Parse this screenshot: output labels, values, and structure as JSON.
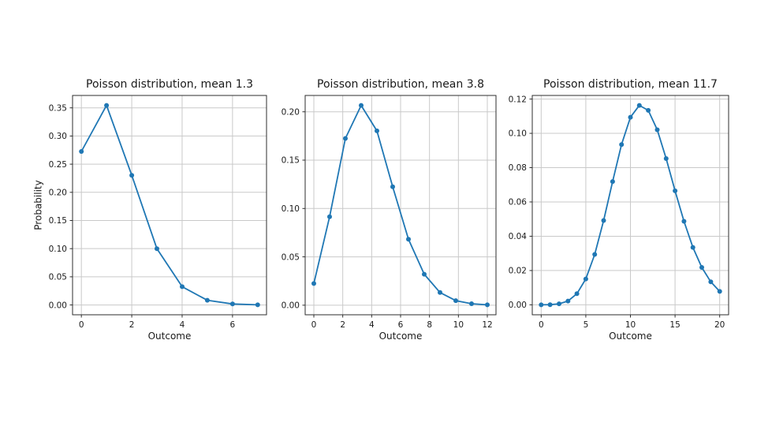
{
  "window": {
    "background": "#ffffff",
    "description": "Figure with three Poisson distribution line plots"
  },
  "style": {
    "accent_line": "#1f77b4",
    "grid": "#c9c9c9",
    "spine": "#2e2e2e",
    "text": "#1a1a1a"
  },
  "chart_data": [
    {
      "type": "line",
      "title": "Poisson distribution, mean 1.3",
      "xlabel": "Outcome",
      "ylabel": "Probability",
      "mean": 1.3,
      "x": [
        0,
        1,
        2,
        3,
        4,
        5,
        6,
        7
      ],
      "y": [
        0.2725,
        0.3543,
        0.2303,
        0.0998,
        0.0324,
        0.0084,
        0.0018,
        0.0003
      ],
      "xlim": [
        -0.35,
        7.35
      ],
      "ylim": [
        -0.0174,
        0.372
      ],
      "xticks": [
        0,
        2,
        4,
        6
      ],
      "yticks": [
        0.0,
        0.05,
        0.1,
        0.15,
        0.2,
        0.25,
        0.3,
        0.35
      ],
      "grid": true,
      "legend": "none",
      "line_color": "#1f77b4",
      "marker": "circle"
    },
    {
      "type": "line",
      "title": "Poisson distribution, mean 3.8",
      "xlabel": "Outcome",
      "ylabel": "",
      "mean": 3.8,
      "x": [
        0,
        1.0909,
        2.1818,
        3.2727,
        4.3636,
        5.4545,
        6.5455,
        7.6364,
        8.7273,
        9.8182,
        10.9091,
        12
      ],
      "y": [
        0.0224,
        0.0915,
        0.1724,
        0.2066,
        0.1803,
        0.1225,
        0.0682,
        0.032,
        0.0131,
        0.0047,
        0.0015,
        0.0004
      ],
      "xlim": [
        -0.6,
        12.6
      ],
      "ylim": [
        -0.0099,
        0.2169
      ],
      "xticks": [
        0,
        2,
        4,
        6,
        8,
        10,
        12
      ],
      "yticks": [
        0.0,
        0.05,
        0.1,
        0.15,
        0.2
      ],
      "grid": true,
      "legend": "none",
      "line_color": "#1f77b4",
      "marker": "circle"
    },
    {
      "type": "line",
      "title": "Poisson distribution, mean 11.7",
      "xlabel": "Outcome",
      "ylabel": "",
      "mean": 11.7,
      "x": [
        0,
        1,
        2,
        3,
        4,
        5,
        6,
        7,
        8,
        9,
        10,
        11,
        12,
        13,
        14,
        15,
        16,
        17,
        18,
        19,
        20
      ],
      "y": [
        0.0,
        0.0001,
        0.0006,
        0.0022,
        0.0065,
        0.0151,
        0.0294,
        0.0492,
        0.0719,
        0.0935,
        0.1094,
        0.1163,
        0.1134,
        0.1021,
        0.0853,
        0.0665,
        0.0487,
        0.0335,
        0.0218,
        0.0134,
        0.0078
      ],
      "xlim": [
        -1,
        21
      ],
      "ylim": [
        -0.0058,
        0.1221
      ],
      "xticks": [
        0,
        5,
        10,
        15,
        20
      ],
      "yticks": [
        0.0,
        0.02,
        0.04,
        0.06,
        0.08,
        0.1,
        0.12
      ],
      "grid": true,
      "legend": "none",
      "line_color": "#1f77b4",
      "marker": "circle"
    }
  ]
}
